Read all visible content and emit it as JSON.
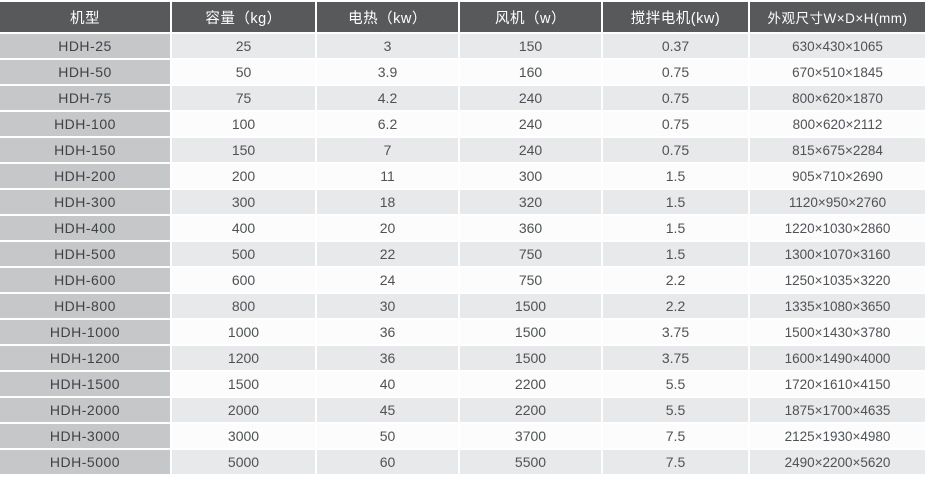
{
  "colors": {
    "header_bg": "#58595b",
    "header_text": "#ffffff",
    "model_column_bg": "#c5c7c9",
    "row_shaded_bg": "#e8e9eb",
    "row_plain_bg": "#fcfcfd",
    "data_text": "#4f5254",
    "divider": "#ffffff"
  },
  "table": {
    "columns": [
      "机型",
      "容量（kg）",
      "电热（kw）",
      "风机（w）",
      "搅拌电机(kw)",
      "外观尺寸W×D×H(mm)"
    ],
    "rows": [
      [
        "HDH-25",
        "25",
        "3",
        "150",
        "0.37",
        "630×430×1065"
      ],
      [
        "HDH-50",
        "50",
        "3.9",
        "160",
        "0.75",
        "670×510×1845"
      ],
      [
        "HDH-75",
        "75",
        "4.2",
        "240",
        "0.75",
        "800×620×1870"
      ],
      [
        "HDH-100",
        "100",
        "6.2",
        "240",
        "0.75",
        "800×620×2112"
      ],
      [
        "HDH-150",
        "150",
        "7",
        "240",
        "0.75",
        "815×675×2284"
      ],
      [
        "HDH-200",
        "200",
        "11",
        "300",
        "1.5",
        "905×710×2690"
      ],
      [
        "HDH-300",
        "300",
        "18",
        "320",
        "1.5",
        "1120×950×2760"
      ],
      [
        "HDH-400",
        "400",
        "20",
        "360",
        "1.5",
        "1220×1030×2860"
      ],
      [
        "HDH-500",
        "500",
        "22",
        "750",
        "1.5",
        "1300×1070×3160"
      ],
      [
        "HDH-600",
        "600",
        "24",
        "750",
        "2.2",
        "1250×1035×3220"
      ],
      [
        "HDH-800",
        "800",
        "30",
        "1500",
        "2.2",
        "1335×1080×3650"
      ],
      [
        "HDH-1000",
        "1000",
        "36",
        "1500",
        "3.75",
        "1500×1430×3780"
      ],
      [
        "HDH-1200",
        "1200",
        "36",
        "1500",
        "3.75",
        "1600×1490×4000"
      ],
      [
        "HDH-1500",
        "1500",
        "40",
        "2200",
        "5.5",
        "1720×1610×4150"
      ],
      [
        "HDH-2000",
        "2000",
        "45",
        "2200",
        "5.5",
        "1875×1700×4635"
      ],
      [
        "HDH-3000",
        "3000",
        "50",
        "3700",
        "7.5",
        "2125×1930×4980"
      ],
      [
        "HDH-5000",
        "5000",
        "60",
        "5500",
        "7.5",
        "2490×2200×5620"
      ]
    ]
  }
}
